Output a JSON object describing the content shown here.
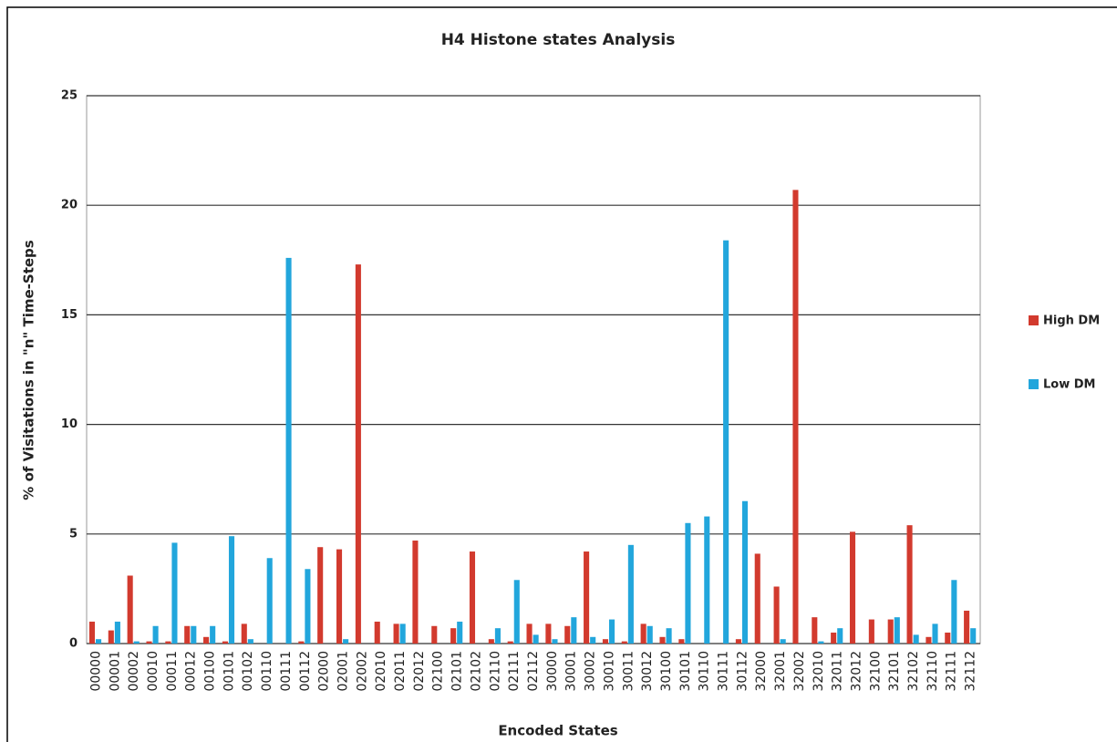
{
  "chart_data": {
    "type": "bar",
    "title": "H4 Histone states Analysis",
    "x_label": "Encoded States",
    "y_label": "% of Visitations in \"n\" Time-Steps",
    "categories": [
      "00000",
      "00001",
      "00002",
      "00010",
      "00011",
      "00012",
      "00100",
      "00101",
      "00102",
      "00110",
      "00111",
      "00112",
      "02000",
      "02001",
      "02002",
      "02010",
      "02011",
      "02012",
      "02100",
      "02101",
      "02102",
      "02110",
      "02111",
      "02112",
      "30000",
      "30001",
      "30002",
      "30010",
      "30011",
      "30012",
      "30100",
      "30101",
      "30110",
      "30111",
      "30112",
      "32000",
      "32001",
      "32002",
      "32010",
      "32011",
      "32012",
      "32100",
      "32101",
      "32102",
      "32110",
      "32111",
      "32112"
    ],
    "series": [
      {
        "name": "High DM",
        "color": "#d23a2e",
        "values": [
          1.0,
          0.6,
          3.1,
          0.1,
          0.1,
          0.8,
          0.3,
          0.1,
          0.9,
          0,
          0,
          0.1,
          4.4,
          4.3,
          17.3,
          1.0,
          0.9,
          4.7,
          0.8,
          0.7,
          4.2,
          0.2,
          0.1,
          0.9,
          0.9,
          0.8,
          4.2,
          0.2,
          0.1,
          0.9,
          0.3,
          0.2,
          0,
          0,
          0.2,
          4.1,
          2.6,
          20.7,
          1.2,
          0.5,
          5.1,
          1.1,
          1.1,
          5.4,
          0.3,
          0.5,
          1.5
        ]
      },
      {
        "name": "Low DM",
        "color": "#22a6dc",
        "values": [
          0.2,
          1.0,
          0.1,
          0.8,
          4.6,
          0.8,
          0.8,
          4.9,
          0.2,
          3.9,
          17.6,
          3.4,
          0,
          0.2,
          0,
          0,
          0.9,
          0,
          0,
          1.0,
          0,
          0.7,
          2.9,
          0.4,
          0.2,
          1.2,
          0.3,
          1.1,
          4.5,
          0.8,
          0.7,
          5.5,
          5.8,
          18.4,
          6.5,
          0,
          0.2,
          0,
          0.1,
          0.7,
          0,
          0,
          1.2,
          0.4,
          0.9,
          2.9,
          0.7
        ]
      }
    ],
    "ylim": [
      0,
      25
    ],
    "yticks": [
      0,
      5,
      10,
      15,
      20,
      25
    ],
    "grid": true,
    "legend": "right"
  }
}
